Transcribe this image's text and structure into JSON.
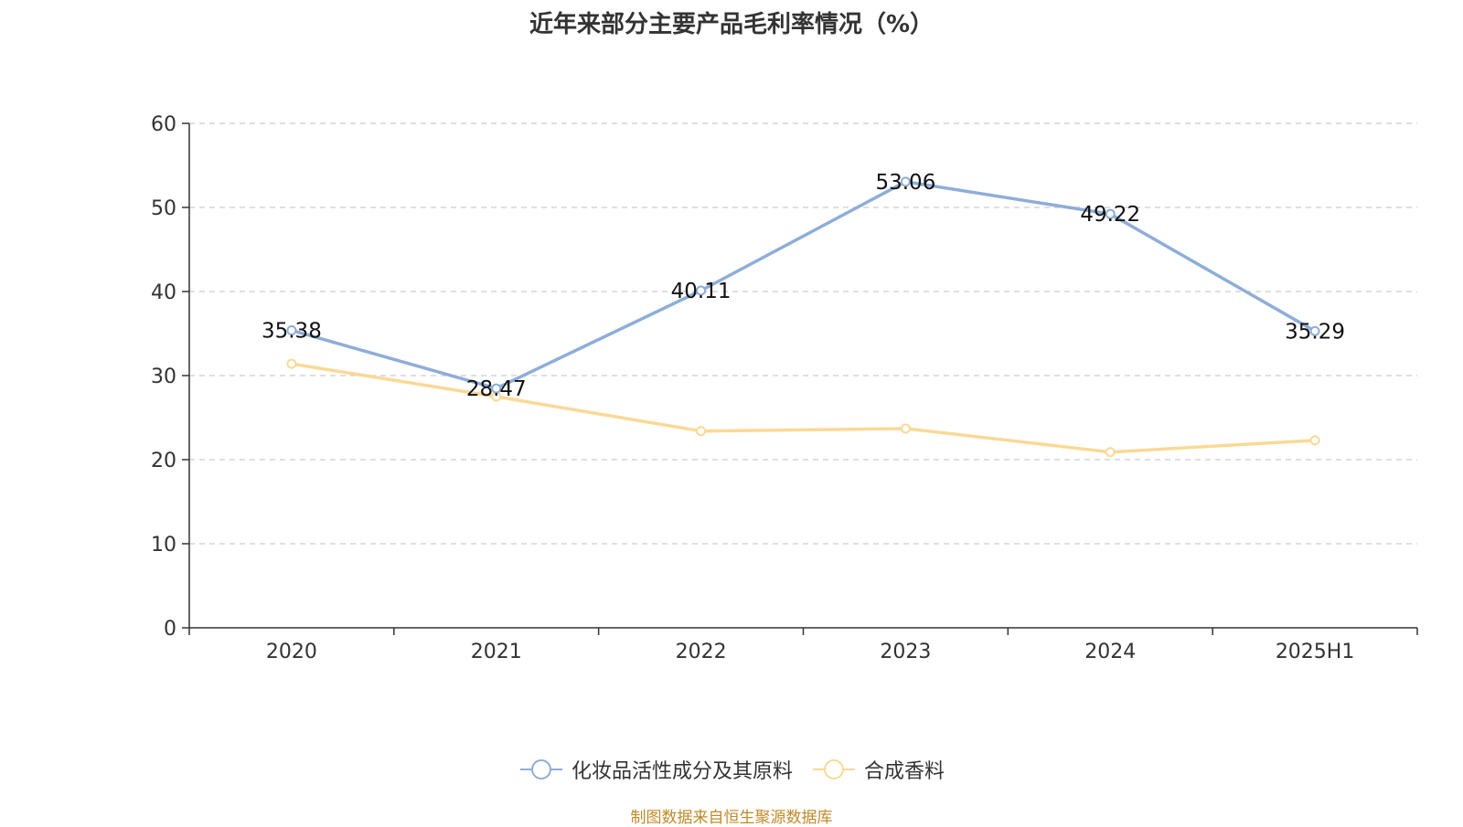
{
  "chart_data": {
    "type": "line",
    "title": "近年来部分主要产品毛利率情况（%）",
    "categories": [
      "2020",
      "2021",
      "2022",
      "2023",
      "2024",
      "2025H1"
    ],
    "series": [
      {
        "name": "化妆品活性成分及其原料",
        "color": "#8eadd8",
        "values": [
          35.38,
          28.47,
          40.11,
          53.06,
          49.22,
          35.29
        ],
        "data_labels": [
          "35.38",
          "28.47",
          "40.11",
          "53.06",
          "49.22",
          "35.29"
        ]
      },
      {
        "name": "合成香料",
        "color": "#fad996",
        "values": [
          31.4,
          27.5,
          23.4,
          23.7,
          20.9,
          22.3
        ]
      }
    ],
    "yticks": [
      "0",
      "10",
      "20",
      "30",
      "40",
      "50",
      "60"
    ],
    "ylim": [
      0,
      60
    ],
    "grid": true,
    "legend_position": "bottom-center"
  },
  "source_note": "制图数据来自恒生聚源数据库"
}
